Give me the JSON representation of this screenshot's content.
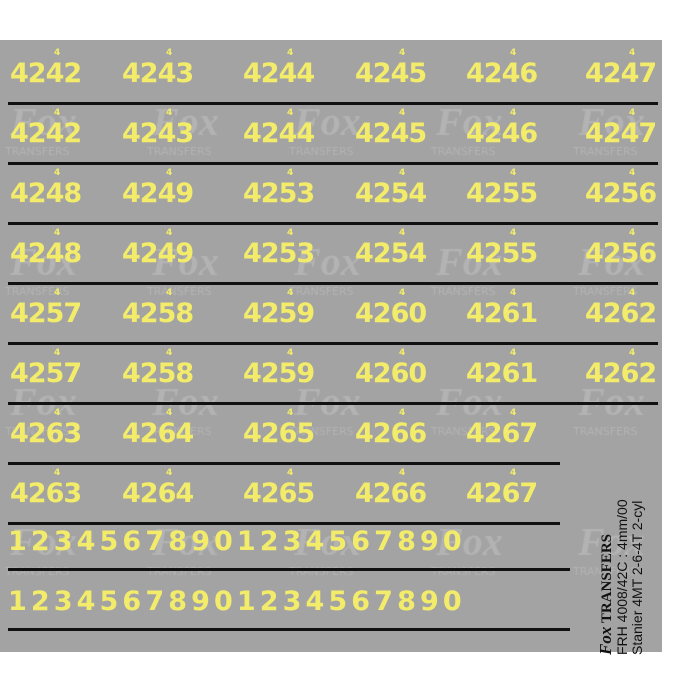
{
  "watermark": {
    "logo": "Fox",
    "text": "TRANSFERS"
  },
  "number_rows": [
    [
      "4242",
      "4243",
      "4244",
      "4245",
      "4246",
      "4247"
    ],
    [
      "4242",
      "4243",
      "4244",
      "4245",
      "4246",
      "4247"
    ],
    [
      "4248",
      "4249",
      "4253",
      "4254",
      "4255",
      "4256"
    ],
    [
      "4248",
      "4249",
      "4253",
      "4254",
      "4255",
      "4256"
    ],
    [
      "4257",
      "4258",
      "4259",
      "4260",
      "4261",
      "4262"
    ],
    [
      "4257",
      "4258",
      "4259",
      "4260",
      "4261",
      "4262"
    ],
    [
      "4263",
      "4264",
      "4265",
      "4266",
      "4267"
    ],
    [
      "4263",
      "4264",
      "4265",
      "4266",
      "4267"
    ]
  ],
  "superscript": "4",
  "digit_rows": [
    "12345678901234567890",
    "12345678901234567890"
  ],
  "label": {
    "brand_logo": "Fox",
    "brand": "TRANSFERS",
    "line1": "FRH 4008/42C : 4mm/00",
    "line2": "Stanier 4MT 2-6-4T 2-cyl"
  },
  "colors": {
    "sheet": "#a3a3a3",
    "numerals": "#f2ec6a",
    "lines": "#111111"
  }
}
